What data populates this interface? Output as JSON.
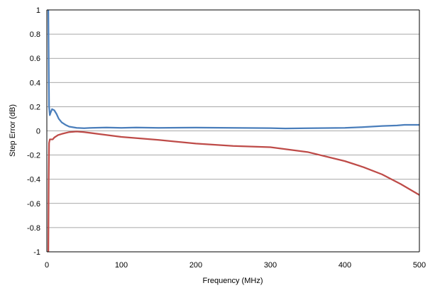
{
  "chart_data": {
    "type": "line",
    "title": "",
    "xlabel": "Frequency (MHz)",
    "ylabel": "Step Error (dB)",
    "xlim": [
      0,
      500
    ],
    "ylim": [
      -1,
      1
    ],
    "x_ticks": [
      0,
      100,
      200,
      300,
      400,
      500
    ],
    "y_ticks": [
      1,
      0.8,
      0.6,
      0.4,
      0.2,
      0,
      -0.2,
      -0.4,
      -0.6,
      -0.8,
      -1
    ],
    "y_tick_labels": [
      "1",
      "0.8",
      "0.6",
      "0.4",
      "0.2",
      "0",
      "-0.2",
      "-0.4",
      "-0.6",
      "-0.8",
      "-1"
    ],
    "grid": "horizontal",
    "legend": "none",
    "colors": {
      "series_blue": "#4a7ebb",
      "series_red": "#be4b48",
      "grid": "#8c8c8c"
    },
    "series": [
      {
        "color": "#4a7ebb",
        "x": [
          2,
          2.5,
          3,
          4,
          5,
          7,
          10,
          13,
          16,
          20,
          25,
          30,
          40,
          50,
          60,
          80,
          100,
          120,
          150,
          200,
          250,
          300,
          320,
          350,
          400,
          420,
          450,
          470,
          480,
          490,
          500
        ],
        "y": [
          1.0,
          0.6,
          0.2,
          0.13,
          0.15,
          0.18,
          0.17,
          0.14,
          0.1,
          0.07,
          0.05,
          0.035,
          0.025,
          0.022,
          0.025,
          0.028,
          0.025,
          0.028,
          0.025,
          0.027,
          0.025,
          0.023,
          0.02,
          0.022,
          0.025,
          0.03,
          0.04,
          0.045,
          0.05,
          0.05,
          0.05
        ]
      },
      {
        "color": "#be4b48",
        "x": [
          2,
          2.5,
          3,
          4,
          6,
          8,
          10,
          15,
          20,
          30,
          40,
          50,
          75,
          100,
          150,
          200,
          250,
          300,
          350,
          400,
          425,
          450,
          475,
          500
        ],
        "y": [
          -1.0,
          -0.4,
          -0.1,
          -0.07,
          -0.07,
          -0.07,
          -0.055,
          -0.035,
          -0.025,
          -0.01,
          -0.005,
          -0.01,
          -0.03,
          -0.05,
          -0.075,
          -0.105,
          -0.125,
          -0.135,
          -0.175,
          -0.25,
          -0.3,
          -0.36,
          -0.44,
          -0.53
        ]
      }
    ]
  }
}
